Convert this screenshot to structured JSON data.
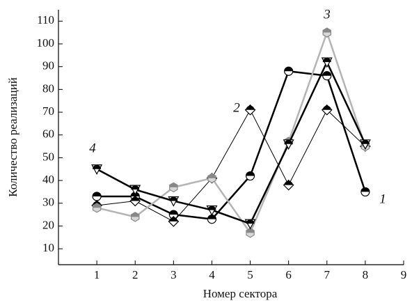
{
  "chart_data": {
    "type": "line",
    "x_label": "Номер сектора",
    "y_label": "Количество реализаций",
    "x": [
      1,
      2,
      3,
      4,
      5,
      6,
      7,
      8
    ],
    "series": [
      {
        "name": "1",
        "color": "#000000",
        "marker": "circle",
        "line_width": 2.5,
        "values": [
          33,
          33,
          25,
          23,
          42,
          88,
          86,
          35
        ]
      },
      {
        "name": "2",
        "color": "#000000",
        "marker": "diamond",
        "line_width": 1,
        "values": [
          29,
          31,
          22,
          41,
          71,
          38,
          71,
          55
        ]
      },
      {
        "name": "3",
        "color": "#b4b4b4",
        "marker": "hexagon",
        "line_width": 2.5,
        "values": [
          28,
          24,
          37,
          41,
          17,
          57,
          105,
          55
        ]
      },
      {
        "name": "4",
        "color": "#000000",
        "marker": "triangle",
        "line_width": 2.5,
        "values": [
          45,
          36,
          31,
          27,
          21,
          56,
          92,
          56
        ]
      }
    ],
    "xlim": [
      0,
      9
    ],
    "xticks": [
      1,
      2,
      3,
      4,
      5,
      6,
      7,
      8,
      9
    ],
    "ylim": [
      3,
      115
    ],
    "yticks": [
      10,
      20,
      30,
      40,
      50,
      60,
      70,
      80,
      90,
      100,
      110
    ],
    "grid": false
  }
}
